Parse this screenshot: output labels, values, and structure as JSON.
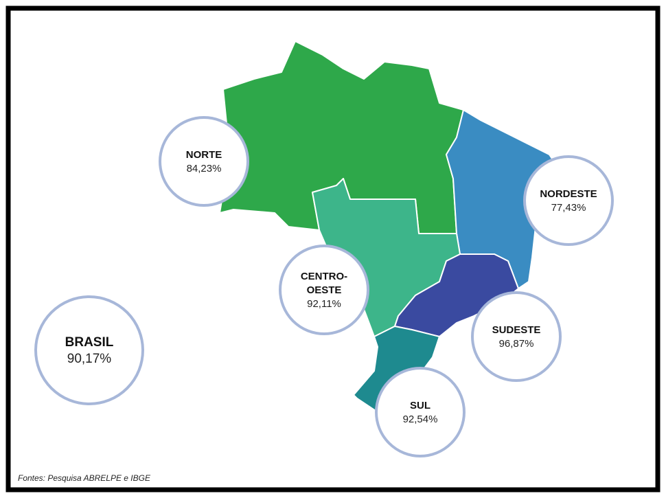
{
  "regions": [
    {
      "name": [
        "NORTE"
      ],
      "value": "84,23%"
    },
    {
      "name": [
        "NORDESTE"
      ],
      "value": "77,43%"
    },
    {
      "name": [
        "CENTRO-",
        "OESTE"
      ],
      "value": "92,11%"
    },
    {
      "name": [
        "SUDESTE"
      ],
      "value": "96,87%"
    },
    {
      "name": [
        "SUL"
      ],
      "value": "92,54%"
    },
    {
      "name": [
        "BRASIL"
      ],
      "value": "90,17%"
    }
  ],
  "source": "Fontes: Pesquisa ABRELPE e IBGE"
}
